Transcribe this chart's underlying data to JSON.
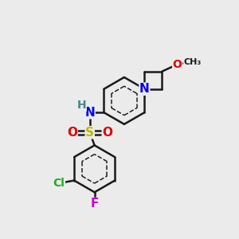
{
  "bg_color": "#ebebeb",
  "bond_color": "#1a1a1a",
  "bond_width": 1.8,
  "atom_colors": {
    "N": "#0000ee",
    "O": "#dd0000",
    "S": "#bbbb00",
    "Cl": "#22aa22",
    "F": "#cc00cc",
    "H_N": "#448888",
    "C": "#1a1a1a"
  },
  "font_size": 10,
  "fig_size": [
    3.0,
    3.0
  ],
  "dpi": 100
}
